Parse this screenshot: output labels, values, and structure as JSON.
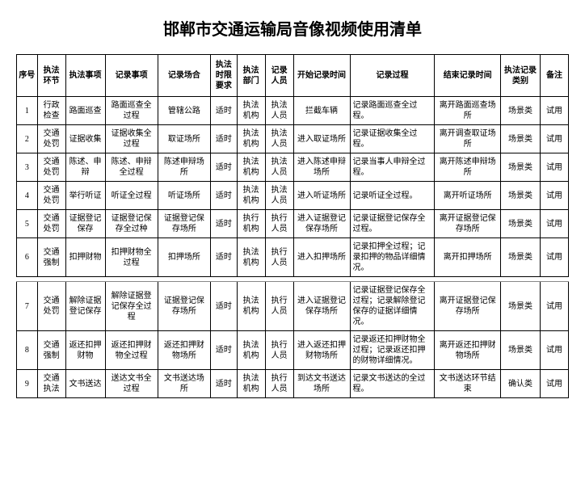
{
  "title": "邯郸市交通运输局音像视频使用清单",
  "columns": [
    "序号",
    "执法环节",
    "执法事项",
    "记录事项",
    "记录场合",
    "执法时限要求",
    "执法部门",
    "记录人员",
    "开始记录时间",
    "记录过程",
    "结束记录时间",
    "执法记录类别",
    "备注"
  ],
  "colClasses": [
    "col-idx",
    "col-env",
    "col-item",
    "col-rec",
    "col-place",
    "col-time",
    "col-dept",
    "col-pers",
    "col-start",
    "col-proc",
    "col-end",
    "col-cat",
    "col-note"
  ],
  "colAlignCenter": [
    true,
    true,
    true,
    true,
    true,
    true,
    true,
    true,
    true,
    false,
    true,
    true,
    true
  ],
  "rows": [
    [
      "1",
      "行政检查",
      "路面巡查",
      "路面巡查全过程",
      "管辖公路",
      "适时",
      "执法机构",
      "执法人员",
      "拦截车辆",
      "记录路面巡查全过程。",
      "离开路面巡查场所",
      "场景类",
      "试用"
    ],
    [
      "2",
      "交通处罚",
      "证据收集",
      "证据收集全过程",
      "取证场所",
      "适时",
      "执法机构",
      "执法人员",
      "进入取证场所",
      "记录证据收集全过程。",
      "离开调查取证场所",
      "场景类",
      "试用"
    ],
    [
      "3",
      "交通处罚",
      "陈述、申辩",
      "陈述、申辩全过程",
      "陈述申辩场所",
      "适时",
      "执法机构",
      "执法人员",
      "进入陈述申辩场所",
      "记录当事人申辩全过程。",
      "离开陈述申辩场所",
      "场景类",
      "试用"
    ],
    [
      "4",
      "交通处罚",
      "举行听证",
      "听证全过程",
      "听证场所",
      "适时",
      "执法机构",
      "执法人员",
      "进入听证场所",
      "记录听证全过程。",
      "离开听证场所",
      "场景类",
      "试用"
    ],
    [
      "5",
      "交通处罚",
      "证据登记保存",
      "证据登记保存全过种",
      "证据登记保存场所",
      "适时",
      "执行机构",
      "执行人员",
      "进入证据登记保存场所",
      "记录证据登记保存全过程。",
      "离开证据登记保存场所",
      "场景类",
      "试用"
    ],
    [
      "6",
      "交通强制",
      "扣押财物",
      "扣押财物全过程",
      "扣押场所",
      "适时",
      "执法机构",
      "执行人员",
      "进入扣押场所",
      "记录扣押全过程；记录扣押的物品详细情况。",
      "离开扣押场所",
      "场景类",
      "试用"
    ]
  ],
  "rows2": [
    [
      "7",
      "交通处罚",
      "解除证据登记保存",
      "解除证据登记保存全过程",
      "证据登记保存场所",
      "适时",
      "执法机构",
      "执行人员",
      "进入证据登记保存场所",
      "记录证据登记保存全过程；记录解除登记保存的证据详细情况。",
      "离开证据登记保存场所",
      "场景类",
      "试用"
    ],
    [
      "8",
      "交通强制",
      "返还扣押财物",
      "返还扣押财物全过程",
      "返还扣押财物场所",
      "适时",
      "执法机构",
      "执行人员",
      "进入返还扣押财物场所",
      "记录返还扣押财物全过程；记录返还扣押的财物详细情况。",
      "离开返还扣押财物场所",
      "场景类",
      "试用"
    ],
    [
      "9",
      "交通执法",
      "文书送达",
      "送达文书全过程",
      "文书送达场所",
      "适时",
      "执法机构",
      "执行人员",
      "到达文书送达场所",
      "记录文书送达的全过程。",
      "文书送达环节结束",
      "确认类",
      "试用"
    ]
  ]
}
